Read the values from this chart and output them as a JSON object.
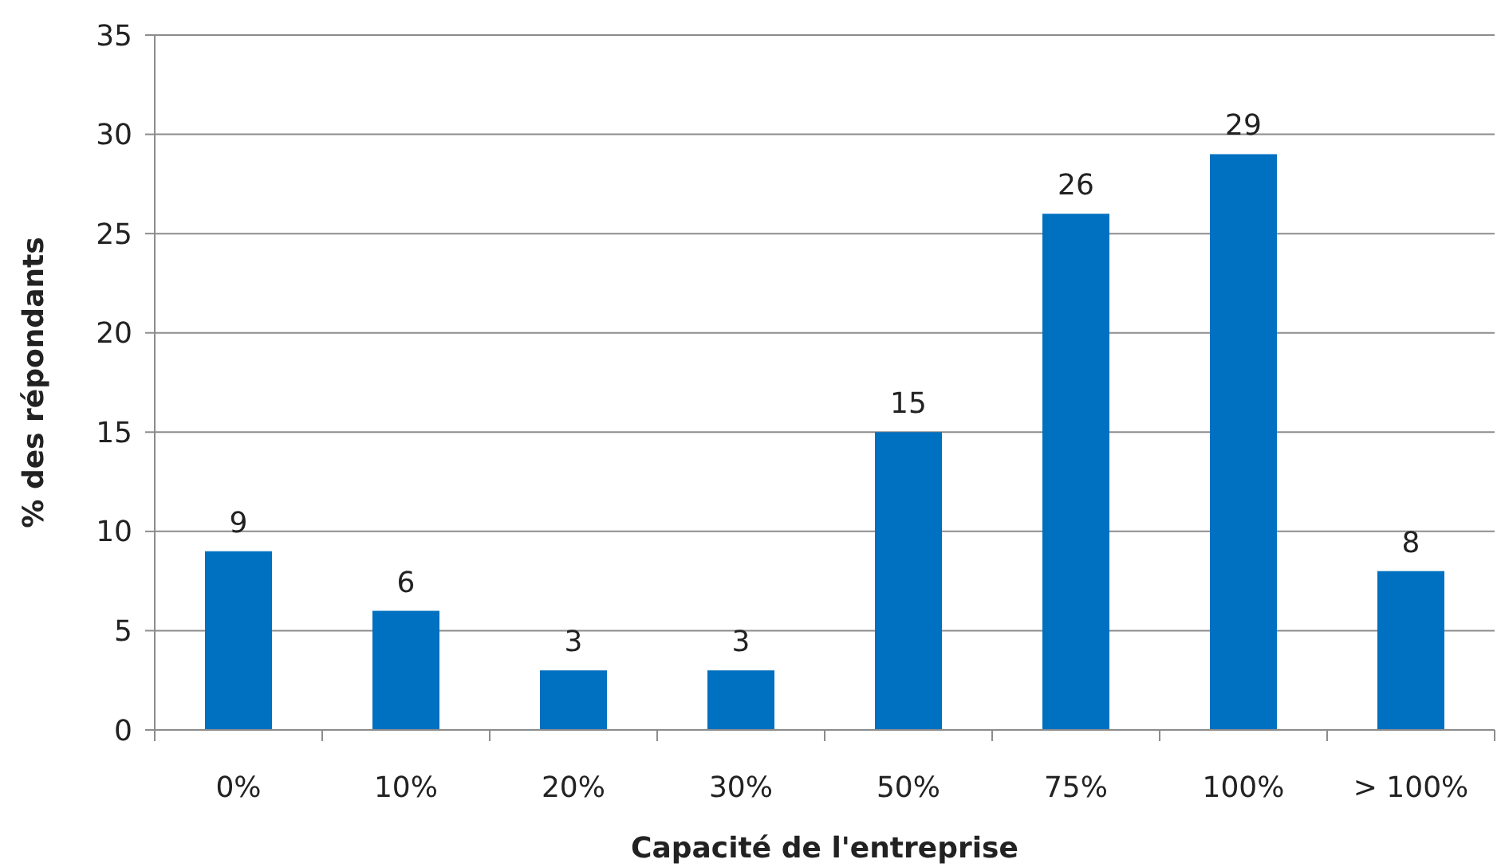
{
  "chart_data": {
    "type": "bar",
    "xlabel": "Capacité de l'entreprise",
    "ylabel": "% des répondants",
    "categories": [
      "0%",
      "10%",
      "20%",
      "30%",
      "50%",
      "75%",
      "100%",
      "> 100%"
    ],
    "values": [
      9,
      6,
      3,
      3,
      15,
      26,
      29,
      8
    ],
    "color": "#0070c0",
    "ylim": [
      0,
      35
    ],
    "yticks": [
      0,
      5,
      10,
      15,
      20,
      25,
      30,
      35
    ],
    "grid": "y",
    "data_labels": true
  }
}
